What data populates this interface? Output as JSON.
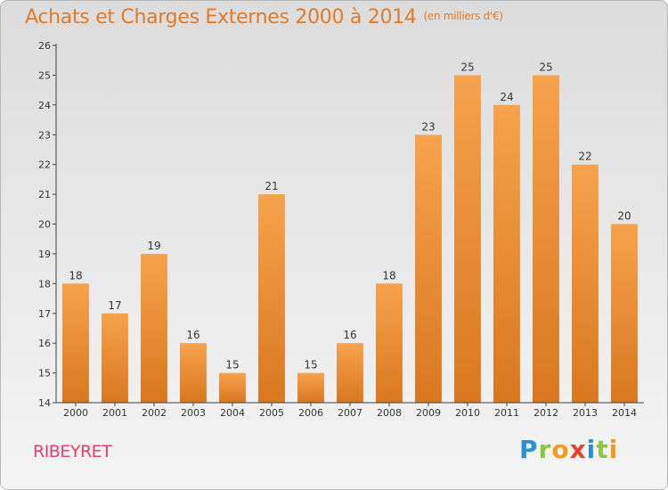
{
  "title": "Achats et Charges Externes 2000 à 2014",
  "unit_note": "(en milliers d'€)",
  "city": "RIBEYRET",
  "logo": {
    "text": "Proxiti",
    "letters": [
      {
        "ch": "P",
        "color": "#2a8fd6"
      },
      {
        "ch": "r",
        "color": "#8cc63f"
      },
      {
        "ch": "o",
        "color": "#f39a1e"
      },
      {
        "ch": "x",
        "color": "#e8412c"
      },
      {
        "ch": "i",
        "color": "#2a8fd6"
      },
      {
        "ch": "t",
        "color": "#8cc63f"
      },
      {
        "ch": "i",
        "color": "#f39a1e"
      }
    ]
  },
  "chart_data": {
    "type": "bar",
    "categories": [
      "2000",
      "2001",
      "2002",
      "2003",
      "2004",
      "2005",
      "2006",
      "2007",
      "2008",
      "2009",
      "2010",
      "2011",
      "2012",
      "2013",
      "2014"
    ],
    "values": [
      18,
      17,
      19,
      16,
      15,
      21,
      15,
      16,
      18,
      23,
      25,
      24,
      25,
      22,
      20
    ],
    "ylim": [
      14,
      26
    ],
    "yticks": [
      14,
      15,
      16,
      17,
      18,
      19,
      20,
      21,
      22,
      23,
      24,
      25,
      26
    ],
    "grid": false,
    "bar_color_top": "#f6a24c",
    "bar_color_bottom": "#d9771f",
    "axis_color": "#404040"
  }
}
